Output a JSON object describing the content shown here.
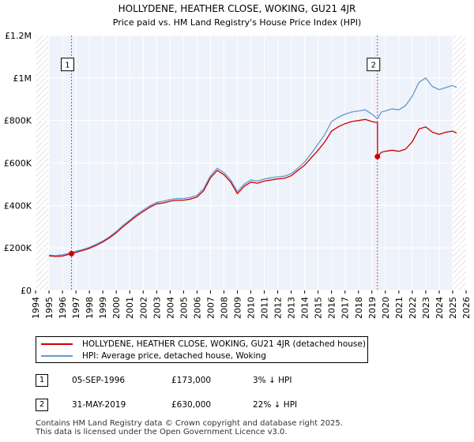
{
  "chart_data": {
    "type": "line",
    "title": "HOLLYDENE, HEATHER CLOSE, WOKING, GU21 4JR",
    "subtitle": "Price paid vs. HM Land Registry's House Price Index (HPI)",
    "xlabel": "",
    "ylabel": "",
    "xlim": [
      1994,
      2026
    ],
    "ylim": [
      0,
      1200000
    ],
    "x_ticks": [
      1994,
      1995,
      1996,
      1997,
      1998,
      1999,
      2000,
      2001,
      2002,
      2003,
      2004,
      2005,
      2006,
      2007,
      2008,
      2009,
      2010,
      2011,
      2012,
      2013,
      2014,
      2015,
      2016,
      2017,
      2018,
      2019,
      2020,
      2021,
      2022,
      2023,
      2024,
      2025,
      2026
    ],
    "y_ticks": [
      {
        "value": 0,
        "label": "£0"
      },
      {
        "value": 200000,
        "label": "£200K"
      },
      {
        "value": 400000,
        "label": "£400K"
      },
      {
        "value": 600000,
        "label": "£600K"
      },
      {
        "value": 800000,
        "label": "£800K"
      },
      {
        "value": 1000000,
        "label": "£1M"
      },
      {
        "value": 1200000,
        "label": "£1.2M"
      }
    ],
    "grid": true,
    "hatched_ranges": [
      [
        1994,
        1995
      ],
      [
        2025,
        2026
      ]
    ],
    "series": [
      {
        "name": "HOLLYDENE, HEATHER CLOSE, WOKING, GU21 4JR (detached house)",
        "color": "#cc0000",
        "x": [
          1995.0,
          1995.5,
          1996.0,
          1996.67,
          1997.0,
          1997.5,
          1998.0,
          1998.5,
          1999.0,
          1999.5,
          2000.0,
          2000.5,
          2001.0,
          2001.5,
          2002.0,
          2002.5,
          2003.0,
          2003.5,
          2004.0,
          2004.5,
          2005.0,
          2005.5,
          2006.0,
          2006.5,
          2007.0,
          2007.5,
          2008.0,
          2008.5,
          2009.0,
          2009.5,
          2010.0,
          2010.5,
          2011.0,
          2011.5,
          2012.0,
          2012.5,
          2013.0,
          2013.5,
          2014.0,
          2014.5,
          2015.0,
          2015.5,
          2016.0,
          2016.5,
          2017.0,
          2017.5,
          2018.0,
          2018.5,
          2019.0,
          2019.41,
          2019.42,
          2019.7,
          2020.0,
          2020.5,
          2021.0,
          2021.5,
          2022.0,
          2022.5,
          2023.0,
          2023.5,
          2024.0,
          2024.5,
          2025.0,
          2025.3
        ],
        "values": [
          163000,
          160000,
          162000,
          173000,
          180000,
          188000,
          198000,
          212000,
          228000,
          248000,
          272000,
          300000,
          325000,
          350000,
          372000,
          392000,
          408000,
          412000,
          420000,
          425000,
          425000,
          430000,
          440000,
          470000,
          530000,
          565000,
          545000,
          510000,
          455000,
          490000,
          510000,
          505000,
          515000,
          520000,
          525000,
          528000,
          540000,
          565000,
          590000,
          625000,
          660000,
          700000,
          750000,
          770000,
          785000,
          795000,
          800000,
          805000,
          795000,
          790000,
          630000,
          650000,
          655000,
          660000,
          655000,
          665000,
          700000,
          760000,
          770000,
          745000,
          735000,
          745000,
          750000,
          740000
        ]
      },
      {
        "name": "HPI: Average price, detached house, Woking",
        "color": "#6699cc",
        "x": [
          1995.0,
          1995.5,
          1996.0,
          1996.67,
          1997.0,
          1997.5,
          1998.0,
          1998.5,
          1999.0,
          1999.5,
          2000.0,
          2000.5,
          2001.0,
          2001.5,
          2002.0,
          2002.5,
          2003.0,
          2003.5,
          2004.0,
          2004.5,
          2005.0,
          2005.5,
          2006.0,
          2006.5,
          2007.0,
          2007.5,
          2008.0,
          2008.5,
          2009.0,
          2009.5,
          2010.0,
          2010.5,
          2011.0,
          2011.5,
          2012.0,
          2012.5,
          2013.0,
          2013.5,
          2014.0,
          2014.5,
          2015.0,
          2015.5,
          2016.0,
          2016.5,
          2017.0,
          2017.5,
          2018.0,
          2018.5,
          2019.0,
          2019.41,
          2019.7,
          2020.0,
          2020.5,
          2021.0,
          2021.5,
          2022.0,
          2022.5,
          2023.0,
          2023.5,
          2024.0,
          2024.5,
          2025.0,
          2025.3
        ],
        "values": [
          166000,
          164000,
          168000,
          178000,
          185000,
          193000,
          203000,
          217000,
          233000,
          253000,
          278000,
          306000,
          331000,
          357000,
          379000,
          399000,
          415000,
          420000,
          428000,
          433000,
          433000,
          438000,
          448000,
          480000,
          540000,
          575000,
          555000,
          520000,
          465000,
          500000,
          520000,
          515000,
          525000,
          530000,
          535000,
          538000,
          550000,
          575000,
          605000,
          645000,
          690000,
          735000,
          795000,
          815000,
          830000,
          840000,
          845000,
          850000,
          830000,
          808000,
          840000,
          845000,
          855000,
          850000,
          870000,
          915000,
          980000,
          1000000,
          960000,
          945000,
          955000,
          965000,
          955000
        ]
      }
    ],
    "annotations": [
      {
        "id": "1",
        "x": 1996.67,
        "y": 173000,
        "label_y": 1060000
      },
      {
        "id": "2",
        "x": 2019.41,
        "y": 630000,
        "label_y": 1060000
      }
    ]
  },
  "legend": {
    "sales_label": "HOLLYDENE, HEATHER CLOSE, WOKING, GU21 4JR (detached house)",
    "hpi_label": "HPI: Average price, detached house, Woking",
    "sales_color": "#cc0000",
    "hpi_color": "#6699cc"
  },
  "sales": [
    {
      "id": "1",
      "date": "05-SEP-1996",
      "price": "£173,000",
      "hpi_diff": "3% ↓ HPI"
    },
    {
      "id": "2",
      "date": "31-MAY-2019",
      "price": "£630,000",
      "hpi_diff": "22% ↓ HPI"
    }
  ],
  "footer": {
    "line1": "Contains HM Land Registry data © Crown copyright and database right 2025.",
    "line2": "This data is licensed under the Open Government Licence v3.0."
  },
  "colors": {
    "plot_bg": "#eef2fa",
    "grid": "#ffffff",
    "marker_line": "#dd4444"
  }
}
